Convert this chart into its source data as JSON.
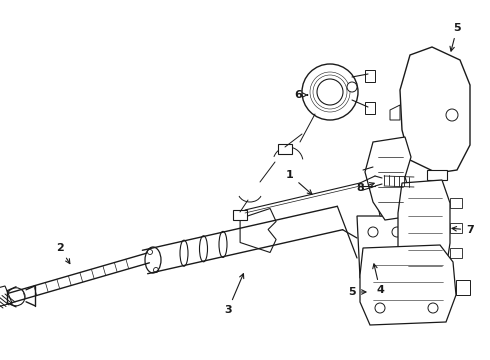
{
  "bg_color": "#ffffff",
  "line_color": "#1a1a1a",
  "fig_width": 4.9,
  "fig_height": 3.6,
  "dpi": 100,
  "lw_main": 0.9,
  "lw_thin": 0.6,
  "lw_thick": 1.1
}
